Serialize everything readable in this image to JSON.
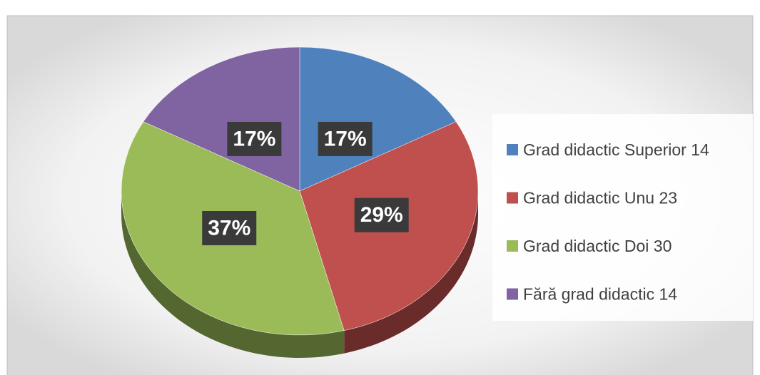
{
  "chart_data": {
    "type": "pie",
    "categories": [
      "Grad didactic Superior 14",
      "Grad didactic Unu 23",
      "Grad didactic Doi 30",
      "Fără grad didactic 14"
    ],
    "values": [
      17,
      29,
      37,
      17
    ],
    "value_labels": [
      "17%",
      "29%",
      "37%",
      "17%"
    ],
    "colors": [
      "#4f81bd",
      "#c0504d",
      "#9bbb59",
      "#8064a2"
    ],
    "legend": "right"
  }
}
